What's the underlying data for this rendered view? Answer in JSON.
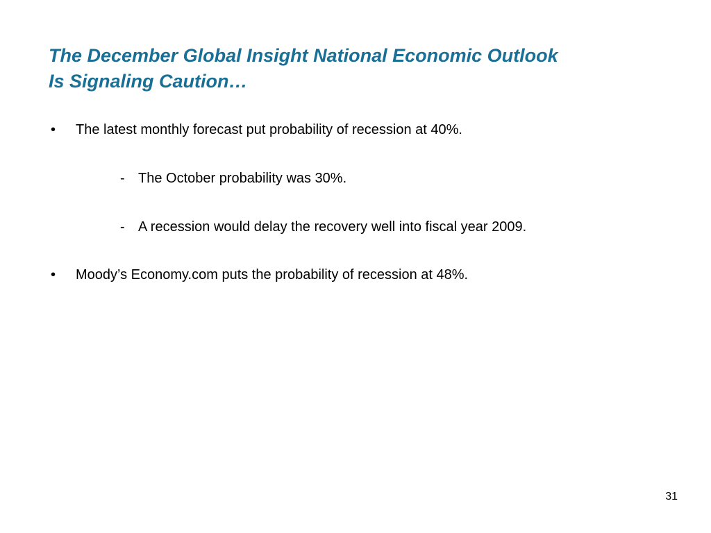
{
  "slide": {
    "title_line1": "The December Global Insight National Economic Outlook",
    "title_line2": "Is Signaling Caution…",
    "bullet_symbol": "•",
    "dash_symbol": "-",
    "bullets": [
      {
        "text": "The latest monthly forecast put probability of recession at 40%."
      },
      {
        "text": "The October probability was 30%."
      },
      {
        "text": "A recession would delay the recovery well into fiscal year 2009."
      },
      {
        "text": "Moody’s Economy.com puts the probability of recession at 48%."
      }
    ],
    "page_number": "31",
    "colors": {
      "title": "#1a6f96",
      "body": "#000000",
      "background": "#ffffff"
    }
  }
}
